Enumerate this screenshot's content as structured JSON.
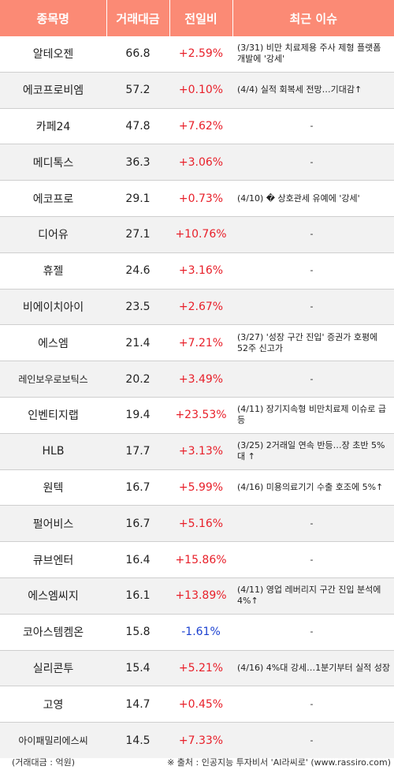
{
  "header": {
    "name": "종목명",
    "volume": "거래대금",
    "change": "전일비",
    "issue": "최근 이슈"
  },
  "rows": [
    {
      "name": "알테오젠",
      "volume": "66.8",
      "change": "+2.59%",
      "dir": "up",
      "issue": "(3/31) 비만 치료제용 주사 제형 플랫폼 개발에 '강세'"
    },
    {
      "name": "에코프로비엠",
      "volume": "57.2",
      "change": "+0.10%",
      "dir": "up",
      "issue": "(4/4) 실적 회복세 전망…기대감↑"
    },
    {
      "name": "카페24",
      "volume": "47.8",
      "change": "+7.62%",
      "dir": "up",
      "issue": "-"
    },
    {
      "name": "메디톡스",
      "volume": "36.3",
      "change": "+3.06%",
      "dir": "up",
      "issue": "-"
    },
    {
      "name": "에코프로",
      "volume": "29.1",
      "change": "+0.73%",
      "dir": "up",
      "issue": "(4/10) � 상호관세 유예에 '강세'"
    },
    {
      "name": "디어유",
      "volume": "27.1",
      "change": "+10.76%",
      "dir": "up",
      "issue": "-"
    },
    {
      "name": "휴젤",
      "volume": "24.6",
      "change": "+3.16%",
      "dir": "up",
      "issue": "-"
    },
    {
      "name": "비에이치아이",
      "volume": "23.5",
      "change": "+2.67%",
      "dir": "up",
      "issue": "-"
    },
    {
      "name": "에스엠",
      "volume": "21.4",
      "change": "+7.21%",
      "dir": "up",
      "issue": "(3/27) '성장 구간 진입' 증권가 호평에 52주 신고가"
    },
    {
      "name": "레인보우로보틱스",
      "volume": "20.2",
      "change": "+3.49%",
      "dir": "up",
      "issue": "-"
    },
    {
      "name": "인벤티지랩",
      "volume": "19.4",
      "change": "+23.53%",
      "dir": "up",
      "issue": "(4/11) 장기지속형 비만치료제 이슈로 급등"
    },
    {
      "name": "HLB",
      "volume": "17.7",
      "change": "+3.13%",
      "dir": "up",
      "issue": "(3/25) 2거래일 연속 반등…장 초반 5%대 ↑"
    },
    {
      "name": "원텍",
      "volume": "16.7",
      "change": "+5.99%",
      "dir": "up",
      "issue": "(4/16) 미용의료기기 수출 호조에 5%↑"
    },
    {
      "name": "펄어비스",
      "volume": "16.7",
      "change": "+5.16%",
      "dir": "up",
      "issue": "-"
    },
    {
      "name": "큐브엔터",
      "volume": "16.4",
      "change": "+15.86%",
      "dir": "up",
      "issue": "-"
    },
    {
      "name": "에스엠씨지",
      "volume": "16.1",
      "change": "+13.89%",
      "dir": "up",
      "issue": "(4/11) 영업 레버리지 구간 진입 분석에 4%↑"
    },
    {
      "name": "코아스템켐온",
      "volume": "15.8",
      "change": "-1.61%",
      "dir": "down",
      "issue": "-"
    },
    {
      "name": "실리콘투",
      "volume": "15.4",
      "change": "+5.21%",
      "dir": "up",
      "issue": "(4/16) 4%대 강세…1분기부터 실적 성장"
    },
    {
      "name": "고영",
      "volume": "14.7",
      "change": "+0.45%",
      "dir": "up",
      "issue": "-"
    },
    {
      "name": "아이패밀리에스씨",
      "volume": "14.5",
      "change": "+7.33%",
      "dir": "up",
      "issue": "-"
    }
  ],
  "footer": {
    "unit": "(거래대금 : 억원)",
    "source": "※ 출처 : 인공지능 투자비서 'AI라씨로' (www.rassiro.com)"
  },
  "colors": {
    "header_bg": "#fb8a75",
    "up": "#e8202a",
    "down": "#1a3fd0",
    "alt_row": "#f2f2f2"
  }
}
